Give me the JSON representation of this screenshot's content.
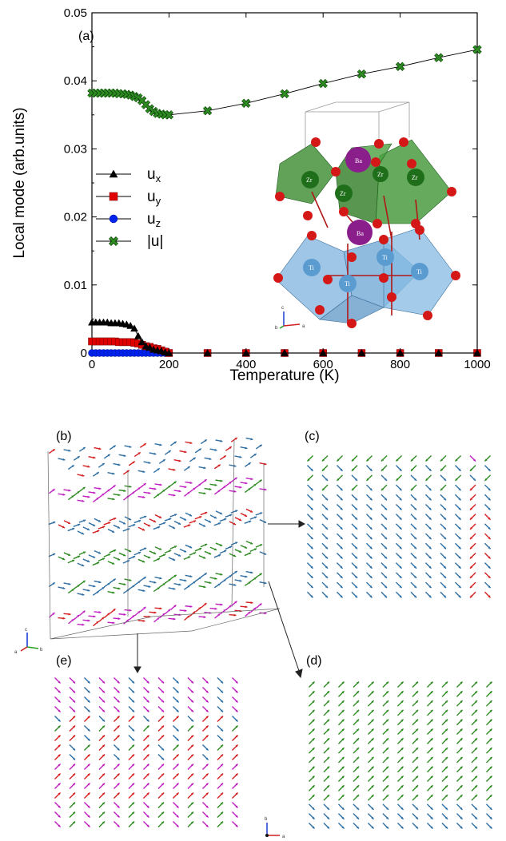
{
  "chart_data": [
    {
      "type": "line",
      "panel_label": "(a)",
      "xlabel": "Temperature (K)",
      "ylabel": "Local mode (arb.units)",
      "xlim": [
        0,
        1000
      ],
      "ylim": [
        0,
        0.05
      ],
      "xticks": [
        "0",
        "200",
        "400",
        "600",
        "800",
        "1000"
      ],
      "yticks": [
        "0",
        "0.01",
        "0.02",
        "0.03",
        "0.04",
        "0.05"
      ],
      "grid": false,
      "legend_position": "center-left",
      "series": [
        {
          "name": "ux",
          "legend_main": "u",
          "legend_sub": "x",
          "color": "#000000",
          "marker": "triangle",
          "x": [
            0,
            10,
            20,
            30,
            40,
            50,
            60,
            70,
            80,
            90,
            100,
            110,
            120,
            130,
            140,
            150,
            160,
            170,
            180,
            190,
            200,
            300,
            400,
            500,
            600,
            700,
            800,
            900,
            1000
          ],
          "y": [
            0.0045,
            0.0045,
            0.0045,
            0.0045,
            0.0045,
            0.0044,
            0.0044,
            0.0044,
            0.0043,
            0.0042,
            0.004,
            0.0036,
            0.0025,
            0.0016,
            0.001,
            0.0008,
            0.0005,
            0.0004,
            0.0003,
            0.0001,
            0.0,
            0.0,
            0.0,
            0.0,
            0.0,
            0.0,
            0.0,
            0.0,
            0.0
          ]
        },
        {
          "name": "uy",
          "legend_main": "u",
          "legend_sub": "y",
          "color": "#e00000",
          "marker": "square",
          "x": [
            0,
            10,
            20,
            30,
            40,
            50,
            60,
            70,
            80,
            90,
            100,
            110,
            120,
            130,
            140,
            150,
            160,
            170,
            180,
            190,
            200,
            300,
            400,
            500,
            600,
            700,
            800,
            900,
            1000
          ],
          "y": [
            0.0017,
            0.0017,
            0.0017,
            0.0017,
            0.0017,
            0.0017,
            0.0017,
            0.0016,
            0.0016,
            0.0016,
            0.0016,
            0.0015,
            0.0014,
            0.0012,
            0.001,
            0.0009,
            0.0007,
            0.0006,
            0.0004,
            0.0002,
            0.0,
            0.0,
            0.0,
            0.0,
            0.0,
            0.0,
            0.0,
            0.0,
            0.0
          ]
        },
        {
          "name": "uz",
          "legend_main": "u",
          "legend_sub": "z",
          "color": "#0022ee",
          "marker": "circle",
          "x": [
            0,
            10,
            20,
            30,
            40,
            50,
            60,
            70,
            80,
            90,
            100,
            110,
            120,
            130,
            140,
            150,
            160,
            170,
            180,
            190,
            200,
            300,
            400,
            500,
            600,
            700,
            800,
            900,
            1000
          ],
          "y": [
            0.0,
            0.0,
            0.0,
            0.0,
            0.0,
            0.0,
            0.0,
            0.0,
            0.0,
            0.0,
            0.0,
            0.0,
            0.0,
            0.0,
            0.0,
            0.0,
            0.0,
            0.0,
            0.0,
            0.0,
            0.0,
            0.0,
            0.0,
            0.0,
            0.0,
            0.0,
            0.0,
            0.0,
            0.0
          ]
        },
        {
          "name": "|u|",
          "legend_main": "|u|",
          "legend_sub": "",
          "color": "#2e8b22",
          "marker": "x",
          "x": [
            0,
            10,
            20,
            30,
            40,
            50,
            60,
            70,
            80,
            90,
            100,
            110,
            120,
            130,
            140,
            150,
            160,
            170,
            180,
            190,
            200,
            300,
            400,
            500,
            600,
            700,
            800,
            900,
            1000
          ],
          "y": [
            0.0382,
            0.0382,
            0.0382,
            0.0382,
            0.0382,
            0.0382,
            0.0382,
            0.0381,
            0.0381,
            0.038,
            0.0379,
            0.0377,
            0.0375,
            0.0371,
            0.0365,
            0.0359,
            0.0355,
            0.0352,
            0.0351,
            0.035,
            0.035,
            0.0356,
            0.0367,
            0.0381,
            0.0396,
            0.041,
            0.0421,
            0.0434,
            0.0446
          ]
        }
      ],
      "inset": {
        "atoms": {
          "Ba": "Ba",
          "Zr": "Zr",
          "Ti": "Ti"
        },
        "axes_labels": [
          "c",
          "b",
          "a"
        ],
        "colors": {
          "Ba": "#8a1e8a",
          "Zr_octahedra": "#2f8f2f",
          "Ti_octahedra": "#6fa9d6",
          "O": "#d41818"
        }
      }
    }
  ],
  "panels": {
    "b": {
      "label": "(b)",
      "axes_labels": [
        "c",
        "a",
        "b"
      ]
    },
    "c": {
      "label": "(c)"
    },
    "d": {
      "label": "(d)"
    },
    "e": {
      "label": "(e)"
    },
    "bottom_axes_labels": [
      "b",
      "a"
    ]
  },
  "colors": {
    "blue": "#2f6fa3",
    "green": "#2e8b22",
    "magenta": "#c020c0",
    "red": "#d42020"
  }
}
